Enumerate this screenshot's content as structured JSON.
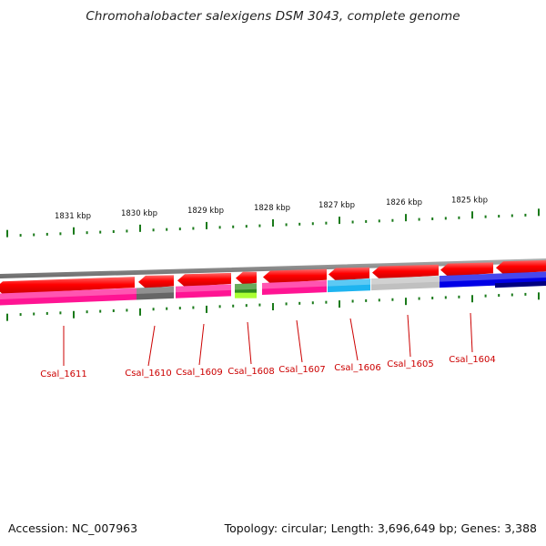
{
  "title": "Chromohalobacter salexigens DSM 3043, complete genome",
  "footer": {
    "accession_label": "Accession:",
    "accession": "NC_007963",
    "topology_label": "Topology:",
    "topology": "circular",
    "length_label": "Length:",
    "length": "3,696,649 bp",
    "genes_label": "Genes:",
    "genes": "3,388",
    "summary": "Topology: circular; Length: 3,696,649 bp; Genes: 3,388"
  },
  "scale": {
    "unit": "kbp",
    "labels": [
      "1831 kbp",
      "1830 kbp",
      "1829 kbp",
      "1828 kbp",
      "1827 kbp",
      "1826 kbp",
      "1825 kbp"
    ]
  },
  "genes": [
    {
      "label": "Csal_1611",
      "strand": "minus",
      "color": "#ff1493"
    },
    {
      "label": "Csal_1610",
      "strand": "minus",
      "color": "#666666"
    },
    {
      "label": "Csal_1609",
      "strand": "minus",
      "color": "#ff1493"
    },
    {
      "label": "Csal_1608",
      "strand": "minus",
      "color": "#2e8b1e"
    },
    {
      "label": "Csal_1607",
      "strand": "minus",
      "color": "#ff1493"
    },
    {
      "label": "Csal_1606",
      "strand": "minus",
      "color": "#1eb4f0"
    },
    {
      "label": "Csal_1605",
      "strand": "minus",
      "color": "#c0c0c0"
    },
    {
      "label": "Csal_1604",
      "strand": "minus",
      "color": "#0000e6"
    }
  ],
  "colors": {
    "gene_arrow": "#ff0000",
    "backbone": "#888888",
    "tick": "#1a7a1a",
    "gene_label": "#cc0000"
  }
}
